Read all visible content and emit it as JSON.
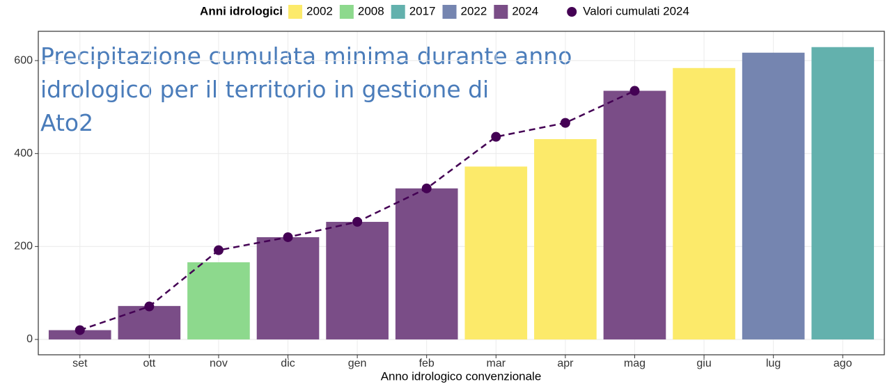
{
  "chart_data": {
    "type": "bar",
    "title": [
      "Precipitazione cumulata minima durante anno",
      "idrologico per il territorio in gestione di",
      "Ato2"
    ],
    "x_label": "Anno idrologico convenzionale",
    "legend_title": "Anni idrologici",
    "legend_position": "top",
    "categories": [
      "set",
      "ott",
      "nov",
      "dic",
      "gen",
      "feb",
      "mar",
      "apr",
      "mag",
      "giu",
      "lug",
      "ago"
    ],
    "series": [
      {
        "name": "2002",
        "color": "#fcea6a",
        "values": [
          null,
          null,
          null,
          null,
          null,
          null,
          372,
          431,
          null,
          584,
          null,
          null
        ]
      },
      {
        "name": "2008",
        "color": "#8dd98d",
        "values": [
          null,
          null,
          166,
          null,
          null,
          null,
          null,
          null,
          null,
          null,
          null,
          null
        ]
      },
      {
        "name": "2017",
        "color": "#63b1ad",
        "values": [
          null,
          null,
          null,
          null,
          null,
          null,
          null,
          null,
          null,
          null,
          null,
          629
        ]
      },
      {
        "name": "2022",
        "color": "#7585b0",
        "values": [
          null,
          null,
          null,
          null,
          null,
          null,
          null,
          null,
          null,
          null,
          617,
          null
        ]
      },
      {
        "name": "2024",
        "color": "#7a4d87",
        "values": [
          20,
          72,
          null,
          220,
          253,
          325,
          null,
          null,
          535,
          null,
          null,
          null
        ]
      },
      {
        "name": "Valori cumulati 2024",
        "type": "line",
        "color": "#440154",
        "values": [
          20,
          71,
          192,
          220,
          253,
          325,
          436,
          466,
          535,
          null,
          null,
          null
        ]
      }
    ],
    "ylim": [
      -33,
      663
    ],
    "yticks": [
      0,
      200,
      400,
      600
    ],
    "grid": true
  }
}
